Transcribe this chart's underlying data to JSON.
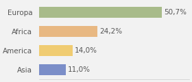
{
  "categories": [
    "Europa",
    "Africa",
    "America",
    "Asia"
  ],
  "values": [
    50.7,
    24.2,
    14.0,
    11.0
  ],
  "labels": [
    "50,7%",
    "24,2%",
    "14,0%",
    "11,0%"
  ],
  "bar_colors": [
    "#a8bb8a",
    "#e8b882",
    "#f0cc72",
    "#7b8ec8"
  ],
  "background_color": "#f2f2f2",
  "xlim": [
    0,
    62
  ],
  "bar_height": 0.58,
  "label_fontsize": 7.5,
  "category_fontsize": 7.5
}
